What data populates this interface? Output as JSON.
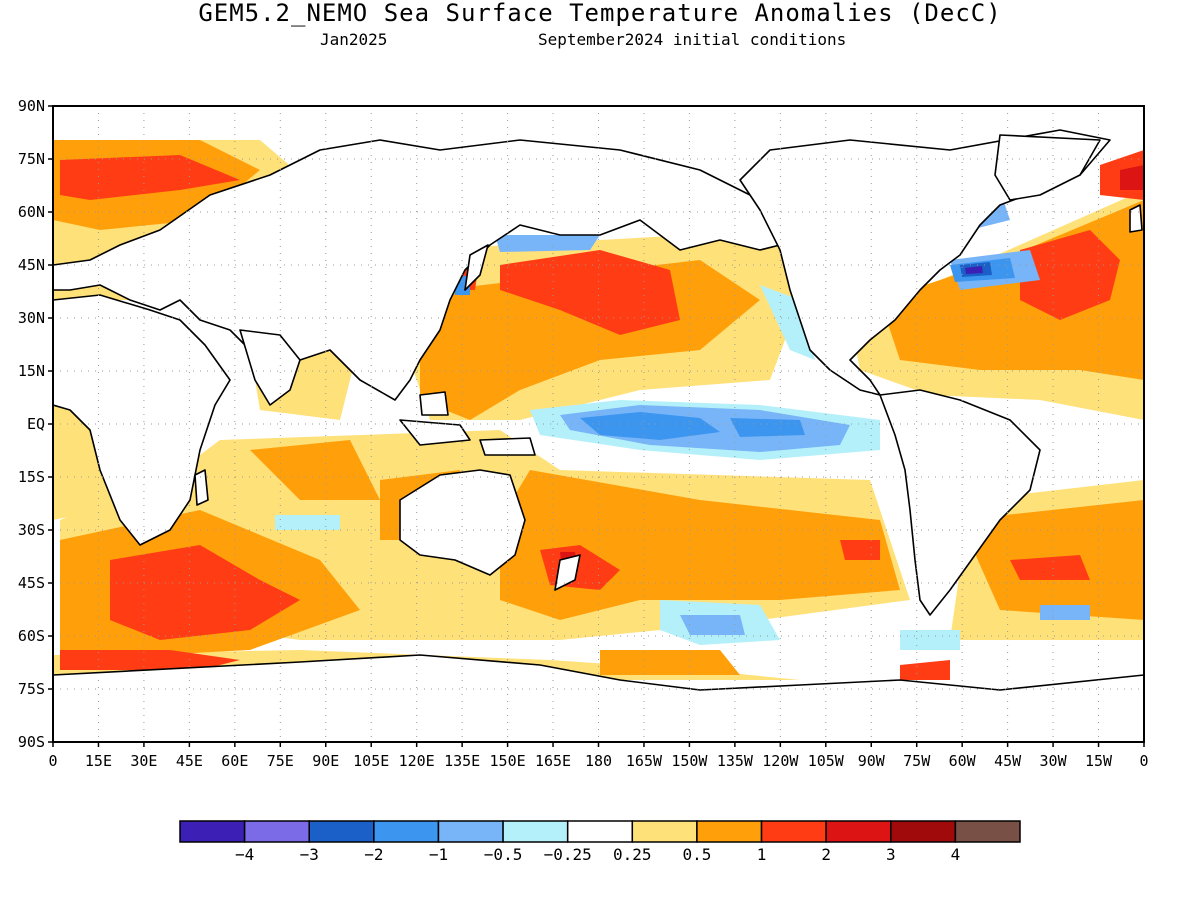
{
  "title": "GEM5.2_NEMO Sea Surface Temperature Anomalies (DecC)",
  "subtitle_month": "Jan2025",
  "subtitle_init": "September2024 initial conditions",
  "lat_labels": [
    "90N",
    "75N",
    "60N",
    "45N",
    "30N",
    "15N",
    "EQ",
    "15S",
    "30S",
    "45S",
    "60S",
    "75S",
    "90S"
  ],
  "lon_labels": [
    "0",
    "15E",
    "30E",
    "45E",
    "60E",
    "75E",
    "90E",
    "105E",
    "120E",
    "135E",
    "150E",
    "165E",
    "180",
    "165W",
    "150W",
    "135W",
    "120W",
    "105W",
    "90W",
    "75W",
    "60W",
    "45W",
    "30W",
    "15W",
    "0"
  ],
  "colorbar": {
    "colors": [
      "#3c1fb4",
      "#7b6be6",
      "#1a60c8",
      "#3c96f0",
      "#78b4f8",
      "#b4f0fa",
      "#ffffff",
      "#ffe17a",
      "#ffa00a",
      "#ff3c14",
      "#dc1414",
      "#a00a0a",
      "#785046"
    ],
    "labels": [
      "−4",
      "−3",
      "−2",
      "−1",
      "−0.5",
      "−0.25",
      "0.25",
      "0.5",
      "1",
      "2",
      "3",
      "4"
    ]
  },
  "palette": {
    "land_outline": "#000000",
    "frame": "#000000",
    "grid": "#999999"
  }
}
